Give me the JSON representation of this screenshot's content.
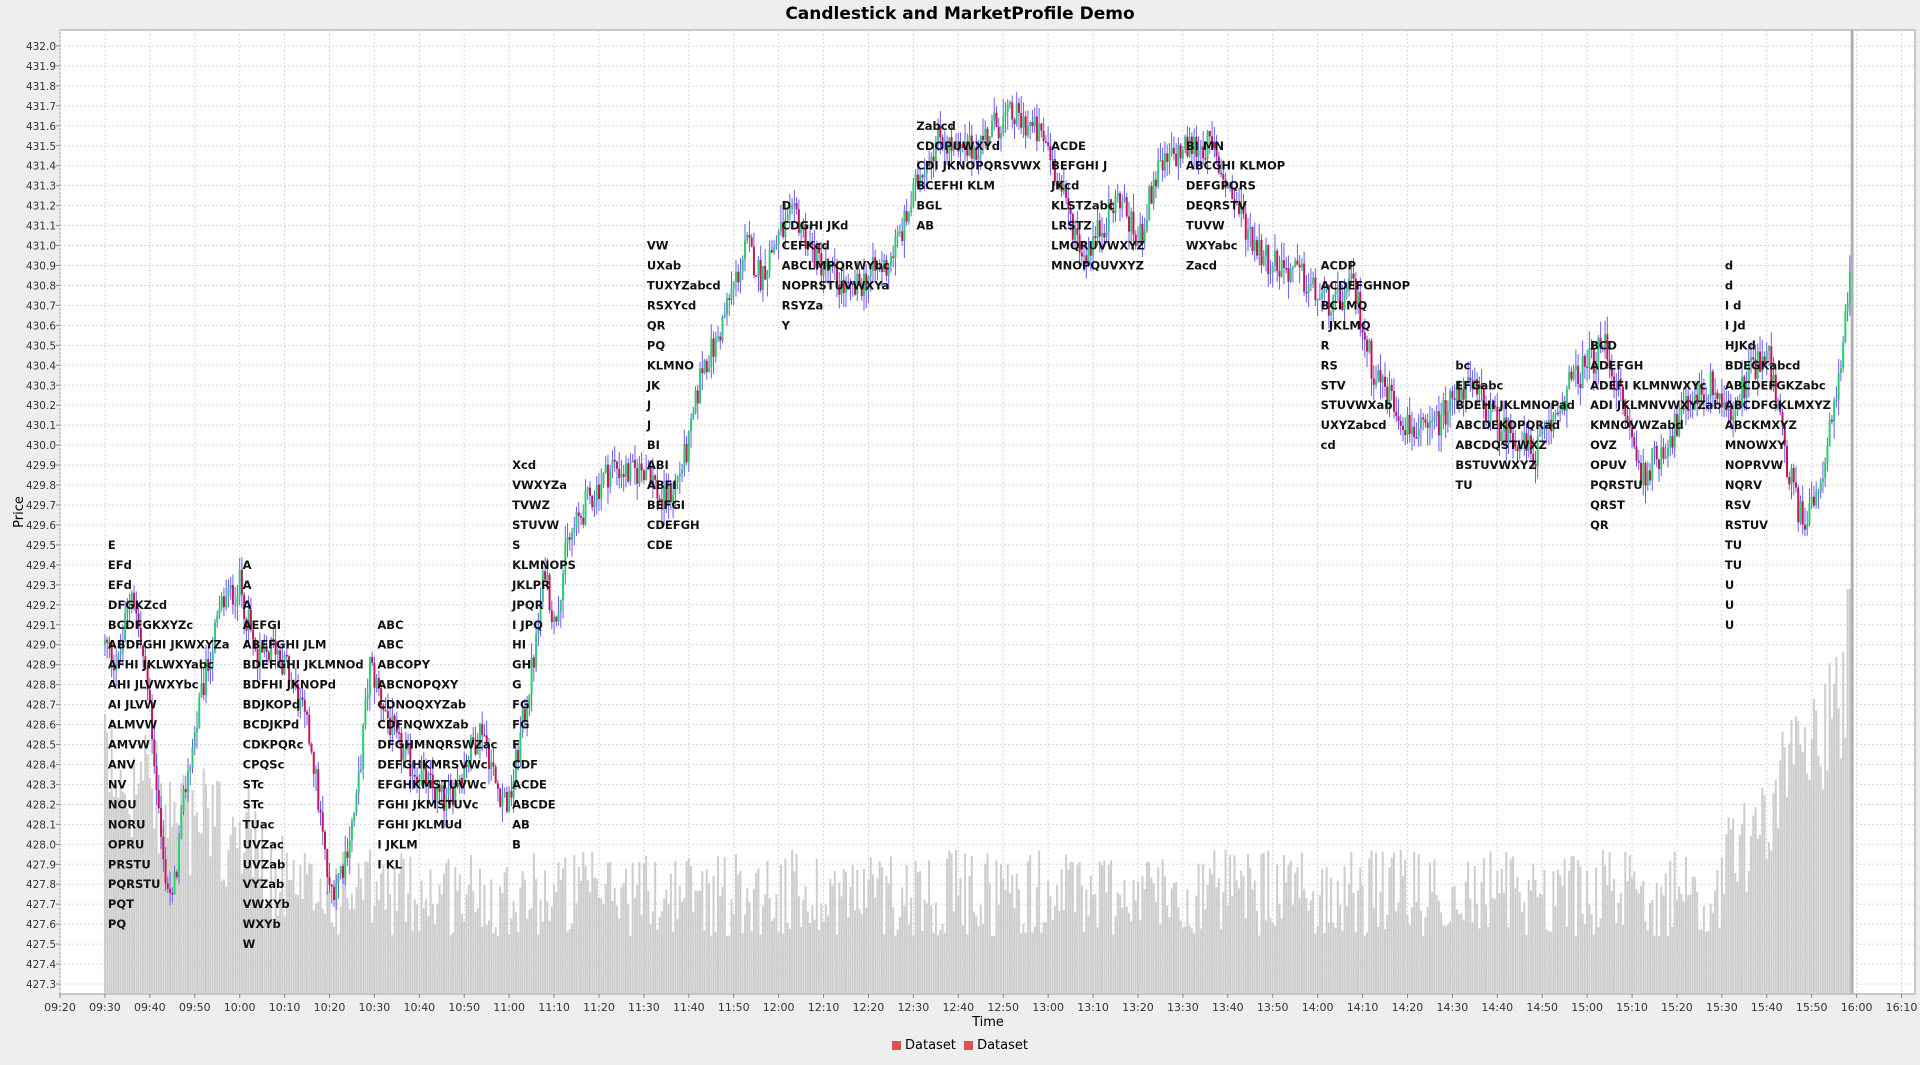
{
  "chart_data": {
    "type": "candlestick",
    "title": "Candlestick and MarketProfile Demo",
    "xlabel": "Time",
    "ylabel": "Price",
    "ylim": [
      427.25,
      432.08
    ],
    "xlim": [
      "09:20",
      "16:13"
    ],
    "grid": true,
    "legend_position": "bottom",
    "x_ticks": [
      "09:20",
      "09:30",
      "09:40",
      "09:50",
      "10:00",
      "10:10",
      "10:20",
      "10:30",
      "10:40",
      "10:50",
      "11:00",
      "11:10",
      "11:20",
      "11:30",
      "11:40",
      "11:50",
      "12:00",
      "12:10",
      "12:20",
      "12:30",
      "12:40",
      "12:50",
      "13:00",
      "13:10",
      "13:20",
      "13:30",
      "13:40",
      "13:50",
      "14:00",
      "14:10",
      "14:20",
      "14:30",
      "14:40",
      "14:50",
      "15:00",
      "15:10",
      "15:20",
      "15:30",
      "15:40",
      "15:50",
      "16:00",
      "16:10"
    ],
    "y_ticks": [
      427.3,
      427.4,
      427.5,
      427.6,
      427.7,
      427.8,
      427.9,
      428.0,
      428.1,
      428.2,
      428.3,
      428.4,
      428.5,
      428.6,
      428.7,
      428.8,
      428.9,
      429.0,
      429.1,
      429.2,
      429.3,
      429.4,
      429.5,
      429.6,
      429.7,
      429.8,
      429.9,
      430.0,
      430.1,
      430.2,
      430.3,
      430.4,
      430.5,
      430.6,
      430.7,
      430.8,
      430.9,
      431.0,
      431.1,
      431.2,
      431.3,
      431.4,
      431.5,
      431.6,
      431.7,
      431.8,
      431.9,
      432.0
    ],
    "series": [
      {
        "name": "Dataset",
        "kind": "candlestick",
        "color": "#e05050"
      },
      {
        "name": "Dataset",
        "kind": "volume",
        "color": "#e05050"
      }
    ],
    "price_anchors": [
      [
        "09:30",
        429.0
      ],
      [
        "09:33",
        428.9
      ],
      [
        "09:36",
        429.3
      ],
      [
        "09:40",
        428.7
      ],
      [
        "09:43",
        427.9
      ],
      [
        "09:45",
        427.7
      ],
      [
        "09:48",
        428.3
      ],
      [
        "09:52",
        428.8
      ],
      [
        "09:56",
        429.2
      ],
      [
        "10:00",
        429.3
      ],
      [
        "10:04",
        428.9
      ],
      [
        "10:08",
        429.0
      ],
      [
        "10:12",
        428.8
      ],
      [
        "10:16",
        428.5
      ],
      [
        "10:20",
        427.75
      ],
      [
        "10:23",
        427.9
      ],
      [
        "10:26",
        428.2
      ],
      [
        "10:29",
        428.9
      ],
      [
        "10:32",
        428.7
      ],
      [
        "10:35",
        428.5
      ],
      [
        "10:38",
        428.4
      ],
      [
        "10:42",
        428.3
      ],
      [
        "10:46",
        428.2
      ],
      [
        "10:50",
        428.4
      ],
      [
        "10:54",
        428.6
      ],
      [
        "10:57",
        428.3
      ],
      [
        "11:00",
        428.2
      ],
      [
        "11:03",
        428.6
      ],
      [
        "11:06",
        429.0
      ],
      [
        "11:08",
        429.4
      ],
      [
        "11:10",
        429.1
      ],
      [
        "11:13",
        429.5
      ],
      [
        "11:17",
        429.7
      ],
      [
        "11:20",
        429.8
      ],
      [
        "11:23",
        429.9
      ],
      [
        "11:27",
        429.85
      ],
      [
        "11:31",
        429.9
      ],
      [
        "11:34",
        429.7
      ],
      [
        "11:37",
        429.8
      ],
      [
        "11:40",
        430.0
      ],
      [
        "11:43",
        430.4
      ],
      [
        "11:46",
        430.5
      ],
      [
        "11:50",
        430.8
      ],
      [
        "11:53",
        431.0
      ],
      [
        "11:56",
        430.85
      ],
      [
        "12:00",
        431.05
      ],
      [
        "12:04",
        431.15
      ],
      [
        "12:08",
        430.95
      ],
      [
        "12:12",
        430.85
      ],
      [
        "12:16",
        430.75
      ],
      [
        "12:20",
        430.85
      ],
      [
        "12:24",
        430.9
      ],
      [
        "12:28",
        431.1
      ],
      [
        "12:32",
        431.4
      ],
      [
        "12:36",
        431.55
      ],
      [
        "12:40",
        431.45
      ],
      [
        "12:44",
        431.5
      ],
      [
        "12:48",
        431.6
      ],
      [
        "12:52",
        431.65
      ],
      [
        "12:56",
        431.6
      ],
      [
        "13:00",
        431.5
      ],
      [
        "13:04",
        431.2
      ],
      [
        "13:08",
        430.95
      ],
      [
        "13:12",
        431.1
      ],
      [
        "13:16",
        431.25
      ],
      [
        "13:20",
        431.0
      ],
      [
        "13:24",
        431.35
      ],
      [
        "13:28",
        431.45
      ],
      [
        "13:32",
        431.5
      ],
      [
        "13:36",
        431.5
      ],
      [
        "13:40",
        431.3
      ],
      [
        "13:44",
        431.1
      ],
      [
        "13:48",
        430.95
      ],
      [
        "13:52",
        430.9
      ],
      [
        "13:56",
        430.85
      ],
      [
        "14:00",
        430.75
      ],
      [
        "14:04",
        430.7
      ],
      [
        "14:08",
        430.8
      ],
      [
        "14:12",
        430.4
      ],
      [
        "14:16",
        430.25
      ],
      [
        "14:20",
        430.1
      ],
      [
        "14:24",
        430.05
      ],
      [
        "14:28",
        430.15
      ],
      [
        "14:32",
        430.3
      ],
      [
        "14:36",
        430.25
      ],
      [
        "14:40",
        430.1
      ],
      [
        "14:44",
        430.05
      ],
      [
        "14:48",
        429.95
      ],
      [
        "14:52",
        430.1
      ],
      [
        "14:56",
        430.3
      ],
      [
        "15:00",
        430.4
      ],
      [
        "15:04",
        430.5
      ],
      [
        "15:08",
        430.2
      ],
      [
        "15:12",
        429.85
      ],
      [
        "15:16",
        429.95
      ],
      [
        "15:20",
        430.1
      ],
      [
        "15:24",
        430.25
      ],
      [
        "15:28",
        430.3
      ],
      [
        "15:32",
        430.15
      ],
      [
        "15:36",
        430.35
      ],
      [
        "15:40",
        430.5
      ],
      [
        "15:44",
        429.95
      ],
      [
        "15:48",
        429.6
      ],
      [
        "15:52",
        429.85
      ],
      [
        "15:56",
        430.3
      ],
      [
        "15:59",
        430.9
      ]
    ],
    "market_profile": [
      {
        "x": "09:30",
        "top": 429.5,
        "rows": [
          "E",
          "EFd",
          "EFd",
          "DFGKZcd",
          "BCDFGKXYZc",
          "ABDFGHI JKWXYZa",
          "AFHI JKLWXYabc",
          "AHI JLVWXYbc",
          "AI JLVW",
          "ALMVW",
          "AMVW",
          "ANV",
          "NV",
          "NOU",
          "NORU",
          "OPRU",
          "PRSTU",
          "PQRSTU",
          "PQT",
          "PQ"
        ]
      },
      {
        "x": "10:00",
        "top": 429.4,
        "rows": [
          "A",
          "A",
          "A",
          "AEFGI",
          "ABEFGHI JLM",
          "BDEFGHI JKLMNOd",
          "BDFHI JKNOPd",
          "BDJKOPd",
          "BCDJKPd",
          "CDKPQRc",
          "CPQSc",
          "STc",
          "STc",
          "TUac",
          "UVZac",
          "UVZab",
          "VYZab",
          "VWXYb",
          "WXYb",
          "W"
        ]
      },
      {
        "x": "10:30",
        "top": 429.1,
        "rows": [
          "ABC",
          "ABC",
          "ABCOPY",
          "ABCNOPQXY",
          "CDNOQXYZab",
          "CDFNQWXZab",
          "DFGHMNQRSWZac",
          "DEFGHKMRSVWc",
          "EFGHKMSTUVWc",
          "FGHI JKMSTUVc",
          "FGHI JKLMUd",
          "I JKLM",
          "I KL"
        ]
      },
      {
        "x": "11:00",
        "top": 429.9,
        "rows": [
          "Xcd",
          "VWXYZa",
          "TVWZ",
          "STUVW",
          "S",
          "KLMNOPS",
          "JKLPR",
          "JPQR",
          "I JPQ",
          "HI",
          "GH",
          "G",
          "FG",
          "FG",
          "F",
          "CDF",
          "ACDE",
          "ABCDE",
          "AB",
          "B"
        ]
      },
      {
        "x": "11:30",
        "top": 431.0,
        "rows": [
          "VW",
          "UXab",
          "TUXYZabcd",
          "RSXYcd",
          "QR",
          "PQ",
          "KLMNO",
          "JK",
          "J",
          "J",
          "BI",
          "ABI",
          "ABFI",
          "BEFGI",
          "CDEFGH",
          "CDE"
        ]
      },
      {
        "x": "12:00",
        "top": 431.2,
        "rows": [
          "D",
          "CDGHI JKd",
          "CEFKcd",
          "ABCLMPQRWYbc",
          "NOPRSTUVWXYa",
          "RSYZa",
          "Y"
        ]
      },
      {
        "x": "12:30",
        "top": 431.6,
        "rows": [
          "Zabcd",
          "CDOPUWXYd",
          "CDI JKNOPQRSVWX",
          "BCEFHI KLM",
          "BGL",
          "AB"
        ]
      },
      {
        "x": "13:00",
        "top": 431.5,
        "rows": [
          "ACDE",
          "BEFGHI J",
          "JKcd",
          "KLSTZabc",
          "LRSTZ",
          "LMQRUVWXYZ",
          "MNOPQUVXYZ"
        ]
      },
      {
        "x": "13:30",
        "top": 431.5,
        "rows": [
          "BI MN",
          "ABCGHI KLMOP",
          "DEFGPQRS",
          "DEQRSTV",
          "TUVW",
          "WXYabc",
          "Zacd"
        ]
      },
      {
        "x": "14:00",
        "top": 430.9,
        "rows": [
          "ACDP",
          "ACDEFGHNOP",
          "BCI MQ",
          "I JKLMQ",
          "R",
          "RS",
          "STV",
          "STUVWXab",
          "UXYZabcd",
          "cd"
        ]
      },
      {
        "x": "14:30",
        "top": 430.4,
        "rows": [
          "bc",
          "EFGabc",
          "BDEHI JKLMNOPad",
          "ABCDEKOPQRad",
          "ABCDQSTWXZ",
          "BSTUVWXYZ",
          "TU"
        ]
      },
      {
        "x": "15:00",
        "top": 430.5,
        "rows": [
          "BCD",
          "ADEFGH",
          "ADEFI KLMNWXYc",
          "ADI JKLMNVWXYZab",
          "KMNOVWZabd",
          "OVZ",
          "OPUV",
          "PQRSTU",
          "QRST",
          "QR"
        ]
      },
      {
        "x": "15:30",
        "top": 430.9,
        "rows": [
          "d",
          "d",
          "I d",
          "I Jd",
          "HJKd",
          "BDEGKabcd",
          "ABCDEFGKZabc",
          "ABCDFGKLMXYZ",
          "ABCKMXYZ",
          "MNOWXY",
          "NOPRVW",
          "NQRV",
          "RSV",
          "RSTUV",
          "TU",
          "TU",
          "U",
          "U",
          "U"
        ]
      }
    ]
  },
  "legend": {
    "items": [
      {
        "label": "Dataset",
        "color": "#e05050"
      },
      {
        "label": "Dataset",
        "color": "#e05050"
      }
    ]
  }
}
